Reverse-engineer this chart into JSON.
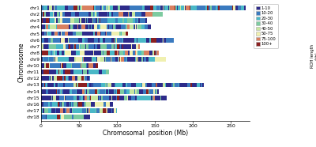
{
  "chromosomes": [
    "chr18",
    "chr17",
    "chr16",
    "chr15",
    "chr14",
    "chr13",
    "chr12",
    "chr11",
    "chr10",
    "chr9",
    "chr8",
    "chr7",
    "chr6",
    "chr5",
    "chr4",
    "chr3",
    "chr2",
    "chr1"
  ],
  "chr_lengths_mb": [
    65,
    100,
    95,
    165,
    155,
    215,
    65,
    90,
    75,
    165,
    155,
    130,
    175,
    115,
    145,
    140,
    160,
    270
  ],
  "bar_height": 0.72,
  "xlabel": "Chromosomal  position (Mb)",
  "ylabel": "Chromosome",
  "legend_colors": [
    "#2d2b8a",
    "#3a7abf",
    "#4ab8c7",
    "#7dcba0",
    "#c8e6a0",
    "#f0f0b0",
    "#d88060",
    "#8b2020"
  ],
  "legend_full_labels": [
    "1-10",
    "10-20",
    "20-30",
    "30-40",
    "40-50",
    "50-75",
    "75-100",
    "100+"
  ],
  "legend_title": "ROH length\n(kb)",
  "xlim": [
    0,
    275
  ],
  "xticks": [
    0,
    50,
    100,
    150,
    200,
    250
  ],
  "seed": 12345
}
